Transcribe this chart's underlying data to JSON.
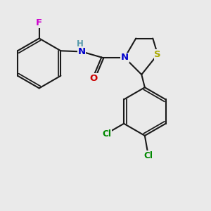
{
  "background_color": "#eaeaea",
  "bond_color": "#1a1a1a",
  "bond_lw": 1.5,
  "dbl_sep": 0.055,
  "atom_colors": {
    "F": "#cc00cc",
    "N": "#0000cc",
    "H": "#5599aa",
    "O": "#cc0000",
    "S": "#aaaa00",
    "Cl": "#008800",
    "C": "#1a1a1a"
  },
  "fs": 9.5
}
